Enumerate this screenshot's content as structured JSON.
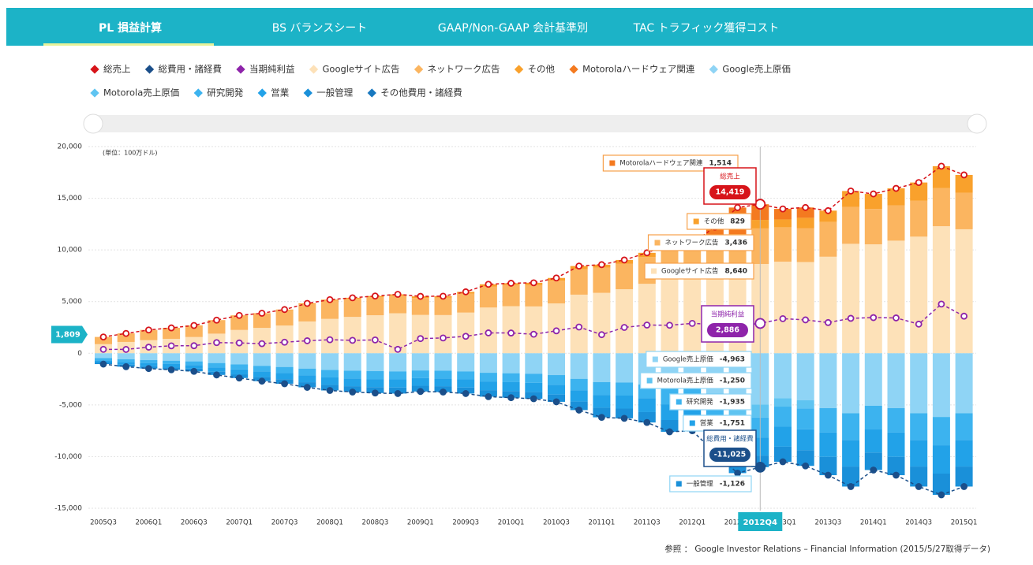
{
  "tabs": [
    "PL 損益計算",
    "BS バランスシート",
    "GAAP/Non-GAAP 会計基準別",
    "TAC トラフィック獲得コスト"
  ],
  "footer": "参照 ： Google Investor Relations – Financial Information (2015/5/27取得データ)",
  "chart_data": {
    "type": "bar",
    "unit_label": "(単位：100万ドル)",
    "categories": [
      "2005Q3",
      null,
      "2006Q1",
      null,
      "2006Q3",
      null,
      "2007Q1",
      null,
      "2007Q3",
      null,
      "2008Q1",
      null,
      "2008Q3",
      null,
      "2009Q1",
      null,
      "2009Q3",
      null,
      "2010Q1",
      null,
      "2010Q3",
      null,
      "2011Q1",
      null,
      "2011Q3",
      null,
      "2012Q1",
      null,
      "2012Q3",
      "2012Q4",
      "2013Q1",
      null,
      "2013Q3",
      null,
      "2014Q1",
      null,
      "2014Q3",
      null,
      "2015Q1"
    ],
    "ylim": [
      -15000,
      20000
    ],
    "yticks": [
      {
        "value": -15000,
        "label": "-15,000"
      },
      {
        "value": -10000,
        "label": "-10,000"
      },
      {
        "value": -5000,
        "label": "-5,000"
      },
      0,
      {
        "value": 5000,
        "label": "5,000"
      },
      {
        "value": 10000,
        "label": "10,000"
      },
      {
        "value": 15000,
        "label": "15,000"
      },
      {
        "value": 20000,
        "label": "20,000"
      }
    ],
    "grid": true,
    "y_cursor": {
      "value": 1809,
      "label": "1,809"
    },
    "series": [
      {
        "name": "総売上",
        "kind": "line",
        "color": "#d7141a",
        "values": [
          1578,
          1919,
          2254,
          2456,
          2690,
          3206,
          3664,
          3872,
          4231,
          4827,
          5186,
          5367,
          5541,
          5701,
          5509,
          5523,
          5945,
          6674,
          6775,
          6820,
          7286,
          8440,
          8575,
          9026,
          9720,
          10584,
          10645,
          12214,
          14101,
          14419,
          13969,
          14105,
          13800,
          15700,
          15420,
          15955,
          16523,
          18103,
          17258
        ],
        "value_labels": [
          null,
          null,
          null,
          null,
          null,
          null,
          null,
          null,
          null,
          null,
          null,
          null,
          null,
          null,
          null,
          null,
          null,
          null,
          null,
          null,
          null,
          null,
          null,
          null,
          null,
          null,
          null,
          null,
          null,
          "14,419",
          null,
          null,
          null,
          null,
          null,
          null,
          null,
          null,
          null
        ]
      },
      {
        "name": "総費用・諸経費",
        "kind": "line",
        "color": "#1b4f8a",
        "values": [
          -1050,
          -1300,
          -1480,
          -1600,
          -1750,
          -2100,
          -2400,
          -2700,
          -2950,
          -3300,
          -3600,
          -3750,
          -3850,
          -3900,
          -3700,
          -3750,
          -3900,
          -4200,
          -4300,
          -4400,
          -4700,
          -5500,
          -6200,
          -6300,
          -6700,
          -7600,
          -7500,
          -9600,
          -11600,
          -11025,
          -10500,
          -10900,
          -11800,
          -12900,
          -11300,
          -11800,
          -12900,
          -13700,
          -12900
        ],
        "value_labels": [
          null,
          null,
          null,
          null,
          null,
          null,
          null,
          null,
          null,
          null,
          null,
          null,
          null,
          null,
          null,
          null,
          null,
          null,
          null,
          null,
          null,
          null,
          null,
          null,
          null,
          null,
          null,
          null,
          null,
          "-11,025",
          null,
          null,
          null,
          null,
          null,
          null,
          null,
          null,
          null
        ]
      },
      {
        "name": "当期純利益",
        "kind": "line",
        "color": "#8e24aa",
        "values": [
          380,
          370,
          590,
          720,
          730,
          1030,
          1000,
          930,
          1070,
          1210,
          1310,
          1250,
          1290,
          380,
          1420,
          1480,
          1640,
          1970,
          1960,
          1840,
          2170,
          2540,
          1800,
          2500,
          2730,
          2710,
          2890,
          2790,
          2700,
          2886,
          3350,
          3230,
          2970,
          3380,
          3450,
          3420,
          2820,
          4760,
          3590
        ],
        "value_labels": [
          null,
          null,
          null,
          null,
          null,
          null,
          null,
          null,
          null,
          null,
          null,
          null,
          null,
          null,
          null,
          null,
          null,
          null,
          null,
          null,
          null,
          null,
          null,
          null,
          null,
          null,
          null,
          null,
          null,
          "2,886",
          null,
          null,
          null,
          null,
          null,
          null,
          null,
          null,
          null
        ]
      },
      {
        "name": "Googleサイト広告",
        "kind": "bar",
        "color": "#fde1b8",
        "values": [
          878,
          1094,
          1264,
          1396,
          1570,
          1896,
          2254,
          2452,
          2681,
          3077,
          3326,
          3517,
          3681,
          3871,
          3709,
          3693,
          3935,
          4424,
          4555,
          4530,
          4826,
          5670,
          5845,
          6196,
          6720,
          7334,
          7325,
          7494,
          7876,
          8640,
          8861,
          8827,
          9340,
          10590,
          10540,
          10895,
          11283,
          12293,
          11998
        ],
        "value_labels": [
          null,
          null,
          null,
          null,
          null,
          null,
          null,
          null,
          null,
          null,
          null,
          null,
          null,
          null,
          null,
          null,
          null,
          null,
          null,
          null,
          null,
          null,
          null,
          null,
          null,
          null,
          null,
          null,
          null,
          "8,640",
          null,
          null,
          null,
          null,
          null,
          null,
          null,
          null,
          null
        ]
      },
      {
        "name": "ネットワーク広告",
        "kind": "bar",
        "color": "#fbb560",
        "values": [
          680,
          800,
          960,
          1030,
          1080,
          1270,
          1360,
          1360,
          1480,
          1670,
          1770,
          1760,
          1730,
          1690,
          1640,
          1680,
          1840,
          2040,
          2040,
          2060,
          2200,
          2460,
          2430,
          2480,
          2600,
          2850,
          2910,
          3010,
          3130,
          3436,
          3330,
          3280,
          3360,
          3580,
          3420,
          3420,
          3470,
          3680,
          3520
        ],
        "value_labels": [
          null,
          null,
          null,
          null,
          null,
          null,
          null,
          null,
          null,
          null,
          null,
          null,
          null,
          null,
          null,
          null,
          null,
          null,
          null,
          null,
          null,
          null,
          null,
          null,
          null,
          null,
          null,
          null,
          null,
          "3,436",
          null,
          null,
          null,
          null,
          null,
          null,
          null,
          null,
          null
        ]
      },
      {
        "name": "その他",
        "kind": "bar",
        "color": "#f9a12c",
        "values": [
          20,
          25,
          30,
          30,
          40,
          40,
          50,
          60,
          70,
          80,
          90,
          90,
          130,
          140,
          160,
          150,
          170,
          210,
          180,
          230,
          260,
          310,
          300,
          350,
          400,
          400,
          410,
          460,
          520,
          829,
          760,
          1000,
          1100,
          1530,
          1460,
          1640,
          1770,
          2130,
          1740
        ],
        "value_labels": [
          null,
          null,
          null,
          null,
          null,
          null,
          null,
          null,
          null,
          null,
          null,
          null,
          null,
          null,
          null,
          null,
          null,
          null,
          null,
          null,
          null,
          null,
          null,
          null,
          null,
          null,
          null,
          null,
          null,
          "829",
          null,
          null,
          null,
          null,
          null,
          null,
          null,
          null,
          null
        ]
      },
      {
        "name": "Motorolaハードウェア関連",
        "kind": "bar",
        "color": "#f47a20",
        "values": [
          0,
          0,
          0,
          0,
          0,
          0,
          0,
          0,
          0,
          0,
          0,
          0,
          0,
          0,
          0,
          0,
          0,
          0,
          0,
          0,
          0,
          0,
          0,
          0,
          0,
          0,
          0,
          1250,
          2575,
          1514,
          1018,
          998,
          0,
          0,
          0,
          0,
          0,
          0,
          0
        ],
        "value_labels": [
          null,
          null,
          null,
          null,
          null,
          null,
          null,
          null,
          null,
          null,
          null,
          null,
          null,
          null,
          null,
          null,
          null,
          null,
          null,
          null,
          null,
          null,
          null,
          null,
          null,
          null,
          null,
          null,
          null,
          "1,514",
          null,
          null,
          null,
          null,
          null,
          null,
          null,
          null,
          null
        ]
      },
      {
        "name": "Google売上原価",
        "kind": "bar",
        "color": "#8fd4f5",
        "values": [
          -473,
          -585,
          -666,
          -720,
          -788,
          -945,
          -1080,
          -1215,
          -1328,
          -1485,
          -1620,
          -1688,
          -1733,
          -1755,
          -1665,
          -1688,
          -1755,
          -1890,
          -1935,
          -1980,
          -2115,
          -2475,
          -2790,
          -2835,
          -3015,
          -3420,
          -3375,
          -3870,
          -4275,
          -4963,
          -4365,
          -4554,
          -5310,
          -5805,
          -5085,
          -5310,
          -5805,
          -6165,
          -5805
        ],
        "value_labels": [
          null,
          null,
          null,
          null,
          null,
          null,
          null,
          null,
          null,
          null,
          null,
          null,
          null,
          null,
          null,
          null,
          null,
          null,
          null,
          null,
          null,
          null,
          null,
          null,
          null,
          null,
          null,
          null,
          null,
          "-4,963",
          null,
          null,
          null,
          null,
          null,
          null,
          null,
          null,
          null
        ]
      },
      {
        "name": "Motorola売上原価",
        "kind": "bar",
        "color": "#5fc4f1",
        "values": [
          0,
          0,
          0,
          0,
          0,
          0,
          0,
          0,
          0,
          0,
          0,
          0,
          0,
          0,
          0,
          0,
          0,
          0,
          0,
          0,
          0,
          0,
          0,
          0,
          0,
          0,
          0,
          -1000,
          -2100,
          -1250,
          -800,
          -780,
          0,
          0,
          0,
          0,
          0,
          0,
          0
        ],
        "value_labels": [
          null,
          null,
          null,
          null,
          null,
          null,
          null,
          null,
          null,
          null,
          null,
          null,
          null,
          null,
          null,
          null,
          null,
          null,
          null,
          null,
          null,
          null,
          null,
          null,
          null,
          null,
          null,
          null,
          null,
          "-1,250",
          null,
          null,
          null,
          null,
          null,
          null,
          null,
          null,
          null
        ]
      },
      {
        "name": "研究開発",
        "kind": "bar",
        "color": "#3cb3ef",
        "values": [
          -210,
          -260,
          -296,
          -320,
          -350,
          -420,
          -480,
          -540,
          -590,
          -660,
          -720,
          -750,
          -770,
          -780,
          -740,
          -750,
          -780,
          -840,
          -860,
          -880,
          -940,
          -1100,
          -1240,
          -1260,
          -1340,
          -1520,
          -1500,
          -1720,
          -1900,
          -1935,
          -1940,
          -2024,
          -2360,
          -2580,
          -2260,
          -2360,
          -2580,
          -2740,
          -2580
        ],
        "value_labels": [
          null,
          null,
          null,
          null,
          null,
          null,
          null,
          null,
          null,
          null,
          null,
          null,
          null,
          null,
          null,
          null,
          null,
          null,
          null,
          null,
          null,
          null,
          null,
          null,
          null,
          null,
          null,
          null,
          null,
          "-1,935",
          null,
          null,
          null,
          null,
          null,
          null,
          null,
          null,
          null
        ]
      },
      {
        "name": "営業",
        "kind": "bar",
        "color": "#22a2e8",
        "values": [
          -210,
          -260,
          -296,
          -320,
          -350,
          -420,
          -480,
          -540,
          -590,
          -660,
          -720,
          -750,
          -770,
          -780,
          -740,
          -750,
          -780,
          -840,
          -860,
          -880,
          -940,
          -1100,
          -1240,
          -1260,
          -1340,
          -1520,
          -1500,
          -1720,
          -1900,
          -1751,
          -1940,
          -2024,
          -2360,
          -2580,
          -2260,
          -2360,
          -2580,
          -2740,
          -2580
        ],
        "value_labels": [
          null,
          null,
          null,
          null,
          null,
          null,
          null,
          null,
          null,
          null,
          null,
          null,
          null,
          null,
          null,
          null,
          null,
          null,
          null,
          null,
          null,
          null,
          null,
          null,
          null,
          null,
          null,
          null,
          null,
          "-1,751",
          null,
          null,
          null,
          null,
          null,
          null,
          null,
          null,
          null
        ]
      },
      {
        "name": "一般管理",
        "kind": "bar",
        "color": "#1a90d9",
        "values": [
          -157,
          -195,
          -222,
          -240,
          -262,
          -315,
          -360,
          -405,
          -442,
          -495,
          -540,
          -562,
          -577,
          -585,
          -555,
          -562,
          -585,
          -630,
          -645,
          -660,
          -705,
          -825,
          -930,
          -945,
          -1005,
          -1140,
          -1125,
          -1290,
          -1425,
          -1126,
          -1455,
          -1518,
          -1770,
          -1935,
          -1695,
          -1770,
          -1935,
          -2055,
          -1935
        ],
        "value_labels": [
          null,
          null,
          null,
          null,
          null,
          null,
          null,
          null,
          null,
          null,
          null,
          null,
          null,
          null,
          null,
          null,
          null,
          null,
          null,
          null,
          null,
          null,
          null,
          null,
          null,
          null,
          null,
          null,
          null,
          "-1,126",
          null,
          null,
          null,
          null,
          null,
          null,
          null,
          null,
          null
        ]
      },
      {
        "name": "その他費用・諸経費",
        "kind": "bar",
        "color": "#1878bf",
        "values": [
          0,
          0,
          0,
          0,
          0,
          0,
          0,
          0,
          0,
          0,
          0,
          0,
          0,
          0,
          0,
          0,
          0,
          0,
          0,
          0,
          0,
          0,
          0,
          0,
          0,
          0,
          0,
          0,
          0,
          0,
          0,
          0,
          0,
          0,
          0,
          0,
          0,
          0,
          0
        ]
      }
    ]
  }
}
